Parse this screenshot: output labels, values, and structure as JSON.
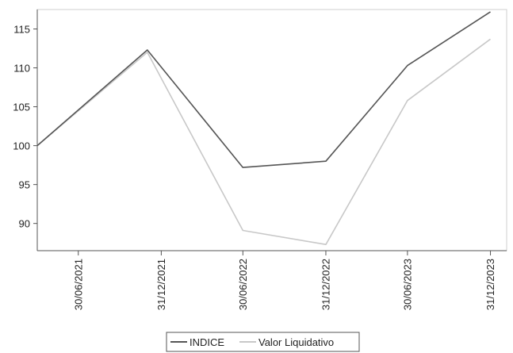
{
  "chart_data": {
    "type": "line",
    "title": "",
    "xlabel": "",
    "ylabel": "",
    "x": [
      "2021-03-31",
      "2021-11-30",
      "2022-06-30",
      "2022-12-31",
      "2023-06-30",
      "2023-12-31"
    ],
    "x_ticks": [
      "30/06/2021",
      "31/12/2021",
      "30/06/2022",
      "31/12/2022",
      "30/06/2023",
      "31/12/2023"
    ],
    "x_display": "ticks at 30/06 and 31/12 of each year, labels rotated vertically",
    "xlim": [
      "2021-03-31",
      "2024-02-05"
    ],
    "ylim": [
      86.5,
      117.5
    ],
    "y_ticks": [
      90,
      95,
      100,
      105,
      110,
      115
    ],
    "grid": false,
    "legend": "bottom-center, boxed",
    "series": [
      {
        "name": "INDICE",
        "color": "#555555",
        "values": [
          100,
          112.3,
          97.2,
          98.0,
          110.3,
          117.2
        ]
      },
      {
        "name": "Valor Liquidativo",
        "color": "#c8c8c8",
        "values": [
          100,
          112.0,
          89.1,
          87.3,
          105.8,
          113.7
        ]
      }
    ]
  }
}
